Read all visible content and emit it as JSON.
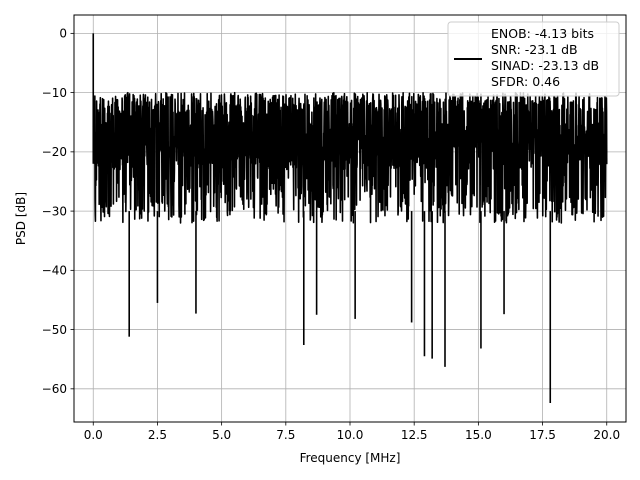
{
  "colors": {
    "background": "#ffffff",
    "line": "#000000",
    "grid": "#b0b0b0",
    "axes": "#000000"
  },
  "chart_data": {
    "type": "line",
    "title": "",
    "xlabel": "Frequency [MHz]",
    "ylabel": "PSD [dB]",
    "xlim": [
      -0.75,
      20.75
    ],
    "ylim": [
      -65.6,
      3.1
    ],
    "x_ticks": [
      0.0,
      2.5,
      5.0,
      7.5,
      10.0,
      12.5,
      15.0,
      17.5,
      20.0
    ],
    "x_tick_labels": [
      "0.0",
      "2.5",
      "5.0",
      "7.5",
      "10.0",
      "12.5",
      "15.0",
      "17.5",
      "20.0"
    ],
    "y_ticks": [
      0,
      -10,
      -20,
      -30,
      -40,
      -50,
      -60
    ],
    "y_tick_labels": [
      "0",
      "−10",
      "−20",
      "−30",
      "−40",
      "−50",
      "−60"
    ],
    "grid": true,
    "legend": {
      "placement": "top-right",
      "entries": [
        "ENOB: -4.13 bits",
        "SNR: -23.1 dB",
        "SINAD: -23.13 dB",
        "SFDR: 0.46"
      ]
    },
    "series": [
      {
        "color": "#000000",
        "x_range": [
          0.0,
          20.0
        ],
        "typical_range_db": [
          -28,
          -10
        ],
        "noise_floor_mean_db": -19,
        "peak": {
          "x": 0.0,
          "y": 0.0
        },
        "notable_dips": [
          {
            "x": 1.4,
            "y": -51.2
          },
          {
            "x": 2.5,
            "y": -45.5
          },
          {
            "x": 4.0,
            "y": -47.3
          },
          {
            "x": 8.2,
            "y": -52.6
          },
          {
            "x": 8.7,
            "y": -47.5
          },
          {
            "x": 10.2,
            "y": -48.2
          },
          {
            "x": 12.4,
            "y": -48.8
          },
          {
            "x": 12.9,
            "y": -54.5
          },
          {
            "x": 13.2,
            "y": -54.9
          },
          {
            "x": 13.7,
            "y": -56.3
          },
          {
            "x": 15.1,
            "y": -53.2
          },
          {
            "x": 16.0,
            "y": -47.4
          },
          {
            "x": 17.8,
            "y": -62.4
          }
        ]
      }
    ]
  }
}
